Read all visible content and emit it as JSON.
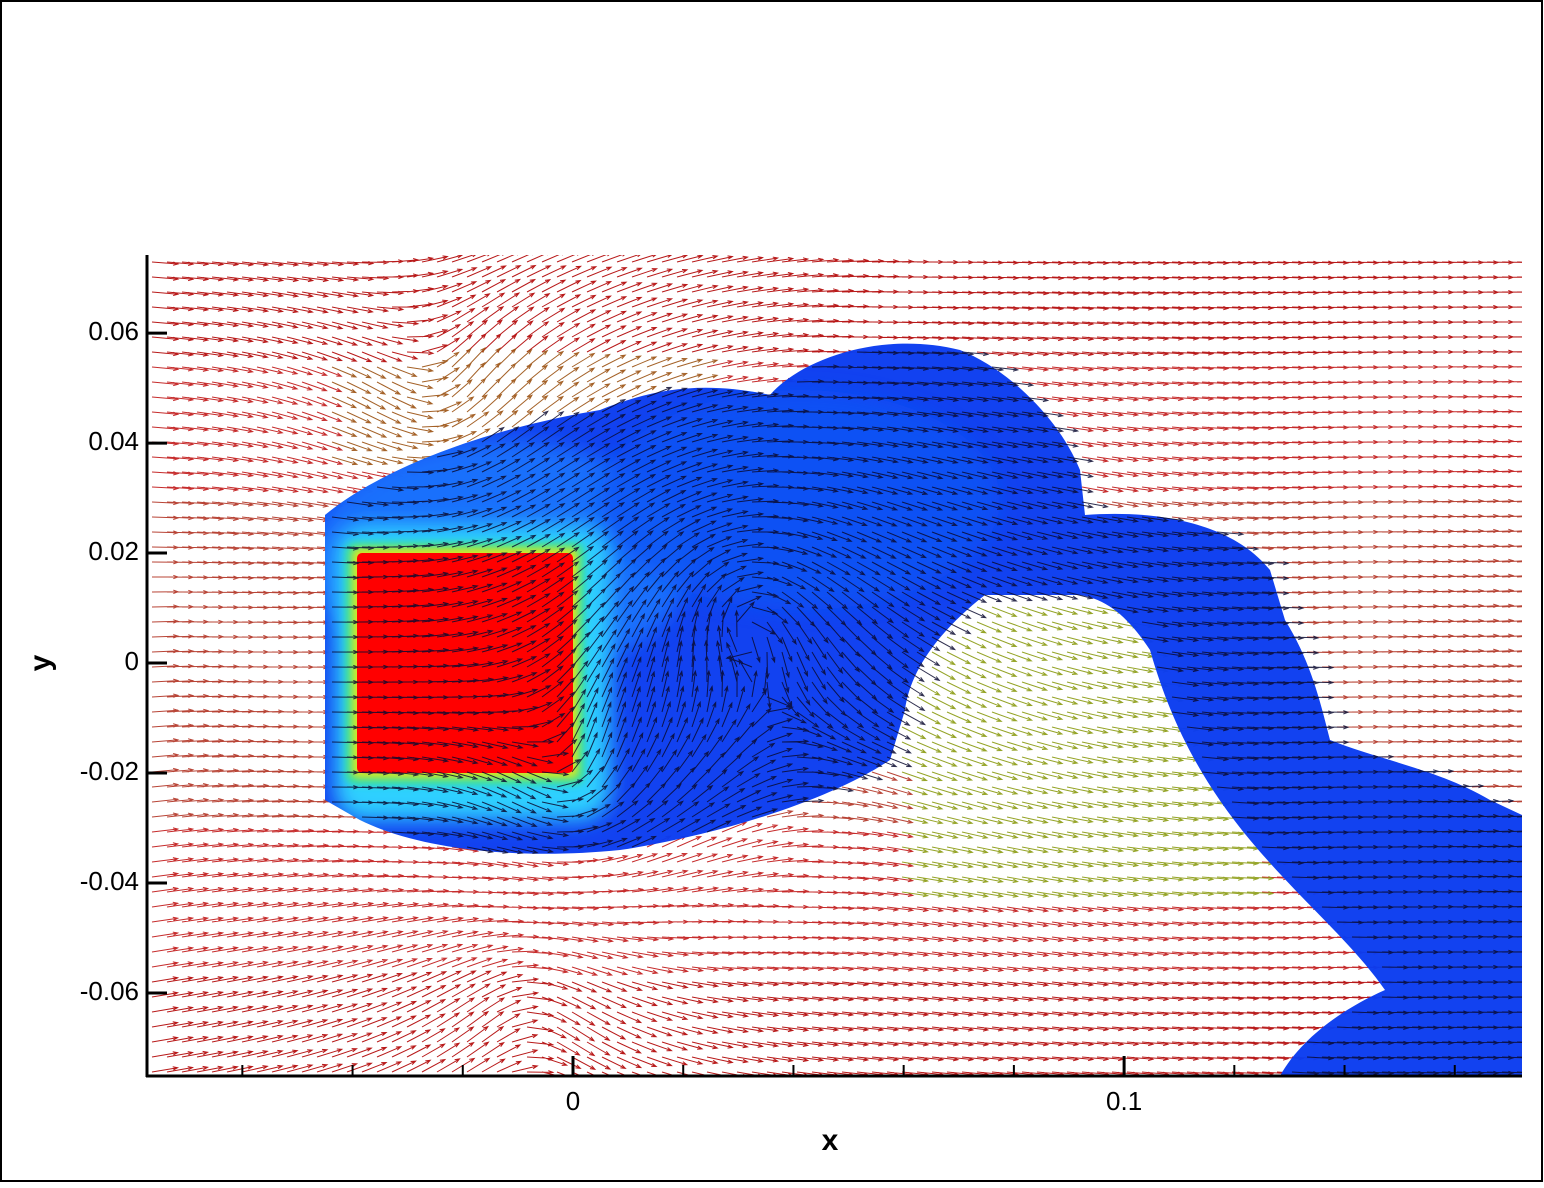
{
  "chart_data": {
    "type": "vector",
    "xlabel": "x",
    "ylabel": "y",
    "xlim": [
      -0.0773,
      0.1722
    ],
    "ylim": [
      -0.0751,
      0.0742
    ],
    "xticks": [
      0,
      0.1
    ],
    "xminorticks": [
      -0.06,
      -0.04,
      -0.02,
      0.02,
      0.04,
      0.06,
      0.08,
      0.12,
      0.14,
      0.16
    ],
    "yticks": [
      -0.06,
      -0.04,
      -0.02,
      0,
      0.02,
      0.04,
      0.06
    ]
  }
}
